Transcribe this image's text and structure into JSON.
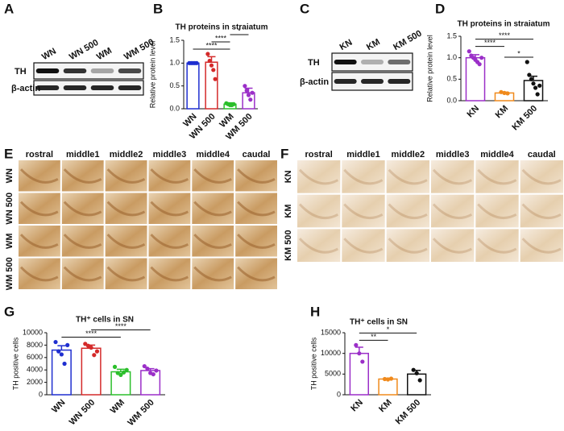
{
  "panels": {
    "A": {
      "label": "A",
      "lanes": [
        "WN",
        "WN 500",
        "WM",
        "WM 500"
      ],
      "rows": [
        "TH",
        "β-actin"
      ]
    },
    "C": {
      "label": "C",
      "lanes": [
        "KN",
        "KM",
        "KM 500"
      ],
      "rows": [
        "TH",
        "β-actin"
      ]
    },
    "E": {
      "label": "E",
      "columns": [
        "rostral",
        "middle1",
        "middle2",
        "middle3",
        "middle4",
        "caudal"
      ],
      "rows": [
        "WN",
        "WN 500",
        "WM",
        "WM 500"
      ]
    },
    "F": {
      "label": "F",
      "columns": [
        "rostral",
        "middle1",
        "middle2",
        "middle3",
        "middle4",
        "caudal"
      ],
      "rows": [
        "KN",
        "KM",
        "KM 500"
      ]
    }
  },
  "chart_data": [
    {
      "type": "bar",
      "label": "B",
      "title": "TH proteins in straiatum",
      "y_label": "Relative protein level",
      "categories": [
        "WN",
        "WN 500",
        "WM",
        "WM 500"
      ],
      "values": [
        1.0,
        1.02,
        0.1,
        0.35
      ],
      "errors": [
        0.01,
        0.12,
        0.03,
        0.1
      ],
      "points": [
        [
          1,
          1,
          1,
          1,
          1
        ],
        [
          1.2,
          1.05,
          0.95,
          0.85,
          0.65
        ],
        [
          0.12,
          0.1,
          0.08,
          0.08,
          0.1
        ],
        [
          0.5,
          0.4,
          0.3,
          0.2,
          0.35
        ]
      ],
      "colors": [
        "#1f2fd0",
        "#d42a2a",
        "#2bbf2b",
        "#9b2fc8"
      ],
      "ylim": [
        0,
        1.5
      ],
      "yticks": [
        {
          "value": 0,
          "label": "0.0"
        },
        {
          "value": 0.5,
          "label": "0.5"
        },
        {
          "value": 1,
          "label": "1.0"
        },
        {
          "value": 1.5,
          "label": "1.5"
        }
      ],
      "annotations": [
        {
          "text": "****",
          "between": [
            "WN",
            "WM"
          ]
        },
        {
          "text": "****",
          "between": [
            "WN 500",
            "WM"
          ]
        },
        {
          "text": "*",
          "between": [
            "WM",
            "WM 500"
          ]
        }
      ]
    },
    {
      "type": "bar",
      "label": "D",
      "title": "TH proteins in straiatum",
      "y_label": "Relative protein level",
      "categories": [
        "KN",
        "KM",
        "KM 500"
      ],
      "values": [
        1.0,
        0.18,
        0.47
      ],
      "errors": [
        0.07,
        0.02,
        0.1
      ],
      "points": [
        [
          1.15,
          1.05,
          1.0,
          0.95,
          0.9,
          0.85,
          1.0
        ],
        [
          0.2,
          0.18,
          0.17
        ],
        [
          0.9,
          0.6,
          0.5,
          0.4,
          0.3,
          0.15,
          0.35
        ]
      ],
      "colors": [
        "#9b2fc8",
        "#f08a1c",
        "#111111"
      ],
      "ylim": [
        0,
        1.5
      ],
      "yticks": [
        {
          "value": 0,
          "label": "0.0"
        },
        {
          "value": 0.5,
          "label": "0.5"
        },
        {
          "value": 1,
          "label": "1.0"
        },
        {
          "value": 1.5,
          "label": "1.5"
        }
      ],
      "annotations": [
        {
          "text": "*",
          "between": [
            "KM",
            "KM 500"
          ]
        },
        {
          "text": "****",
          "between": [
            "KN",
            "KM"
          ]
        },
        {
          "text": "****",
          "between": [
            "KN",
            "KM 500"
          ]
        }
      ]
    },
    {
      "type": "bar",
      "label": "G",
      "title": "TH⁺ cells in SN",
      "y_label": "TH positive cells",
      "categories": [
        "WN",
        "WN 500",
        "WM",
        "WM 500"
      ],
      "values": [
        7200,
        7500,
        3700,
        3900
      ],
      "errors": [
        700,
        500,
        400,
        300
      ],
      "points": [
        [
          8500,
          7000,
          6500,
          5000,
          8000
        ],
        [
          8200,
          7900,
          7600,
          6400,
          7000
        ],
        [
          4500,
          3500,
          3200,
          3600,
          4000
        ],
        [
          4600,
          4200,
          3500,
          3300,
          3900
        ]
      ],
      "colors": [
        "#1f2fd0",
        "#d42a2a",
        "#2bbf2b",
        "#9b2fc8"
      ],
      "ylim": [
        0,
        10000
      ],
      "yticks": [
        0,
        2000,
        4000,
        6000,
        8000,
        10000
      ],
      "annotations": [
        {
          "text": "****",
          "between": [
            "WN",
            "WM"
          ]
        },
        {
          "text": "****",
          "between": [
            "WN 500",
            "WM 500"
          ]
        }
      ]
    },
    {
      "type": "bar",
      "label": "H",
      "title": "TH⁺ cells in SN",
      "y_label": "TH positive cells",
      "categories": [
        "KN",
        "KM",
        "KM 500"
      ],
      "values": [
        10000,
        3800,
        5000
      ],
      "errors": [
        1500,
        200,
        900
      ],
      "points": [
        [
          12000,
          10000,
          8000
        ],
        [
          3800,
          3700,
          3900
        ],
        [
          6000,
          5200,
          3500
        ]
      ],
      "colors": [
        "#9b2fc8",
        "#f08a1c",
        "#111111"
      ],
      "ylim": [
        0,
        15000
      ],
      "yticks": [
        0,
        5000,
        10000,
        15000
      ],
      "annotations": [
        {
          "text": "**",
          "between": [
            "KN",
            "KM"
          ]
        },
        {
          "text": "*",
          "between": [
            "KN",
            "KM 500"
          ]
        }
      ]
    }
  ]
}
